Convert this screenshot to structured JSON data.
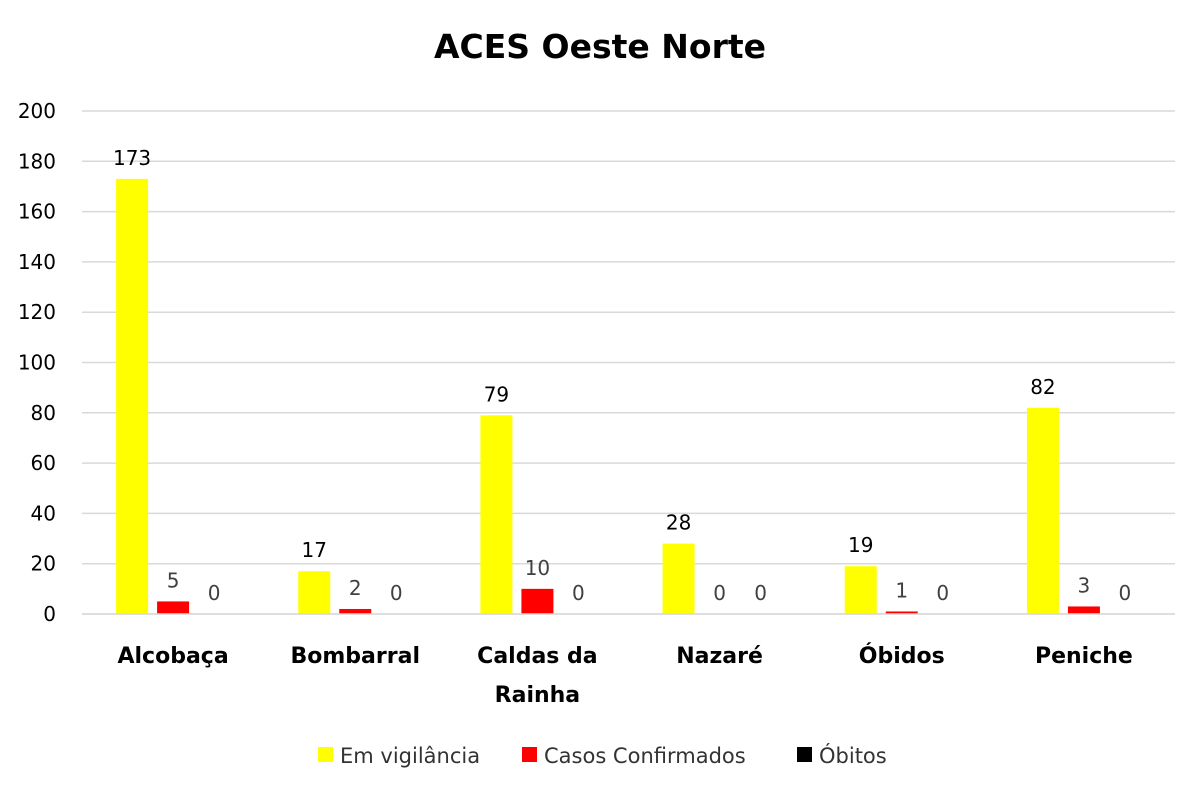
{
  "chart_data": {
    "type": "bar",
    "title": "ACES Oeste Norte",
    "xlabel": "",
    "ylabel": "",
    "categories": [
      [
        "Alcobaça"
      ],
      [
        "Bombarral"
      ],
      [
        "Caldas da",
        "Rainha"
      ],
      [
        "Nazaré"
      ],
      [
        "Óbidos"
      ],
      [
        "Peniche"
      ]
    ],
    "series": [
      {
        "name": "Em vigilância",
        "color": "#ffff00",
        "values": [
          173,
          17,
          79,
          28,
          19,
          82
        ]
      },
      {
        "name": "Casos Confirmados",
        "color": "#ff0000",
        "values": [
          5,
          2,
          10,
          0,
          1,
          3
        ]
      },
      {
        "name": "Óbitos",
        "color": "#000000",
        "values": [
          0,
          0,
          0,
          0,
          0,
          0
        ]
      }
    ],
    "ylim": [
      0,
      200
    ],
    "yticks": [
      0,
      20,
      40,
      60,
      80,
      100,
      120,
      140,
      160,
      180,
      200
    ],
    "grid": true,
    "legend_position": "bottom"
  }
}
